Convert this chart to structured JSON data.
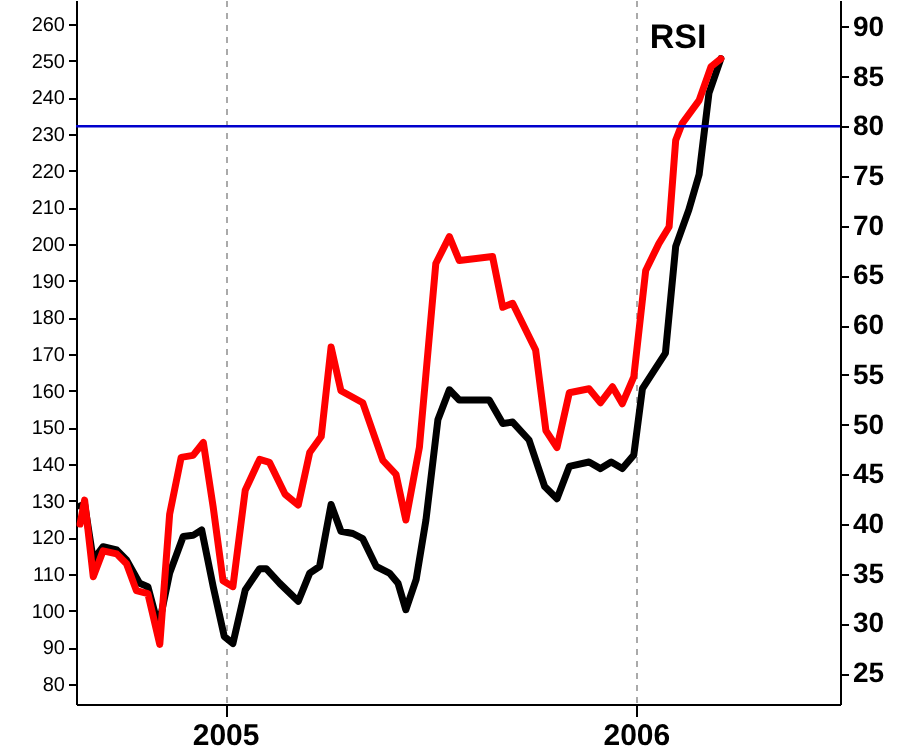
{
  "chart_data": {
    "type": "line",
    "title": "RSI",
    "xlim": [
      2004.637,
      2006.497
    ],
    "xticks": [
      {
        "value": 2005,
        "label": "2005"
      },
      {
        "value": 2006,
        "label": "2006"
      }
    ],
    "ylim": [
      74.5,
      266.5
    ],
    "yticks": [
      80,
      90,
      100,
      110,
      120,
      130,
      140,
      150,
      160,
      170,
      180,
      190,
      200,
      210,
      220,
      230,
      240,
      250,
      260
    ],
    "y2lim": [
      21.9,
      92.7
    ],
    "y2ticks": [
      25,
      30,
      35,
      40,
      45,
      50,
      55,
      60,
      65,
      70,
      75,
      80,
      85,
      90
    ],
    "grid": "x",
    "marker": "none",
    "line_style": "solid",
    "ref_lines": [
      {
        "axis": "y2",
        "value": 80,
        "color": "#0000cc"
      }
    ],
    "series": [
      {
        "color": "#000000",
        "axis": "y",
        "x": [
          2004.647,
          2004.658,
          2004.679,
          2004.703,
          2004.736,
          2004.76,
          2004.792,
          2004.812,
          2004.838,
          2004.865,
          2004.898,
          2004.922,
          2004.943,
          2004.971,
          2004.998,
          2005.019,
          2005.049,
          2005.084,
          2005.1,
          2005.133,
          2005.178,
          2005.206,
          2005.23,
          2005.258,
          2005.282,
          2005.311,
          2005.335,
          2005.368,
          2005.4,
          2005.421,
          2005.44,
          2005.465,
          2005.489,
          2005.518,
          2005.546,
          2005.57,
          2005.643,
          2005.676,
          2005.7,
          2005.74,
          2005.778,
          2005.808,
          2005.838,
          2005.886,
          2005.914,
          2005.94,
          2005.967,
          2005.995,
          2006.016,
          2006.04,
          2006.072,
          2006.097,
          2006.129,
          2006.154,
          2006.178,
          2006.207
        ],
        "values": [
          128.5,
          129,
          113.8,
          117.4,
          116.5,
          113.8,
          107.4,
          106.5,
          95.6,
          110.2,
          120.2,
          120.5,
          122,
          106.5,
          92.9,
          91,
          105.6,
          111.4,
          111.4,
          107.4,
          102.5,
          110.2,
          112,
          128.9,
          121.6,
          121,
          119.6,
          112,
          110.2,
          107.4,
          100.2,
          108.4,
          124.7,
          152,
          160.2,
          157.4,
          157.4,
          151,
          151.4,
          146.5,
          133.8,
          130.5,
          139.3,
          140.5,
          138.7,
          140.5,
          138.7,
          142.4,
          160.5,
          164.7,
          170.2,
          199.3,
          209.3,
          218.9,
          241.1,
          250.5
        ]
      },
      {
        "color": "#ff0000",
        "axis": "y2",
        "x": [
          2004.647,
          2004.658,
          2004.679,
          2004.703,
          2004.736,
          2004.76,
          2004.784,
          2004.812,
          2004.841,
          2004.865,
          2004.893,
          2004.922,
          2004.947,
          2004.971,
          2004.995,
          2005.019,
          2005.049,
          2005.084,
          2005.108,
          2005.146,
          2005.178,
          2005.206,
          2005.234,
          2005.258,
          2005.282,
          2005.335,
          2005.384,
          2005.416,
          2005.44,
          2005.473,
          2005.513,
          2005.546,
          2005.57,
          2005.651,
          2005.676,
          2005.7,
          2005.756,
          2005.781,
          2005.808,
          2005.838,
          2005.886,
          2005.914,
          2005.943,
          2005.967,
          2005.995,
          2006.024,
          2006.056,
          2006.081,
          2006.097,
          2006.113,
          2006.154,
          2006.183,
          2006.207
        ],
        "values": [
          40,
          42.4,
          34.7,
          37.3,
          37,
          36,
          33.3,
          33,
          27.9,
          41,
          46.7,
          46.9,
          48.2,
          41.7,
          34.3,
          33.7,
          43.4,
          46.5,
          46.2,
          43,
          41.9,
          47.2,
          48.8,
          57.8,
          53.4,
          52.2,
          46.4,
          45,
          40.4,
          47.7,
          66.2,
          68.9,
          66.5,
          66.9,
          61.8,
          62.2,
          57.5,
          49.4,
          47.7,
          53.2,
          53.6,
          52.2,
          53.8,
          52.1,
          54.8,
          65.5,
          68.2,
          69.9,
          78.6,
          80.3,
          82.6,
          86,
          86.8
        ]
      }
    ]
  }
}
